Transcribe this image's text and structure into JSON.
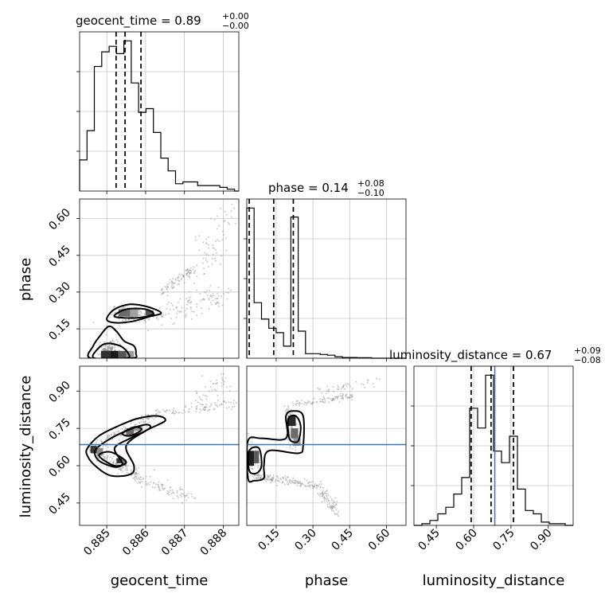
{
  "chart_data": {
    "type": "corner",
    "parameters": [
      "geocent_time",
      "phase",
      "luminosity_distance"
    ],
    "truths": {
      "luminosity_distance": 0.685
    },
    "colors": {
      "truth": "#3a78ad",
      "lines": "#000000",
      "grid": "#b0b0b0"
    },
    "summaries": [
      {
        "name": "geocent_time",
        "label": "geocent_time = 0.89",
        "plus": "+0.00",
        "minus": "−0.00"
      },
      {
        "name": "phase",
        "label": "phase = 0.14",
        "plus": "+0.08",
        "minus": "−0.10"
      },
      {
        "name": "luminosity_distance",
        "label": "luminosity_distance = 0.67",
        "plus": "+0.09",
        "minus": "−0.08"
      }
    ],
    "axes": {
      "geocent_time": {
        "range": [
          0.8843,
          0.8884
        ],
        "ticks": [
          0.885,
          0.886,
          0.887,
          0.888
        ],
        "tick_labels": [
          "0.885",
          "0.886",
          "0.887",
          "0.888"
        ]
      },
      "phase": {
        "range": [
          0.03,
          0.68
        ],
        "ticks": [
          0.15,
          0.3,
          0.45,
          0.6
        ],
        "tick_labels": [
          "0.15",
          "0.30",
          "0.45",
          "0.60"
        ]
      },
      "luminosity_distance": {
        "range": [
          0.36,
          1.0
        ],
        "ticks": [
          0.45,
          0.6,
          0.75,
          0.9
        ],
        "tick_labels": [
          "0.45",
          "0.60",
          "0.75",
          "0.90"
        ]
      }
    },
    "histograms": [
      {
        "name": "geocent_time",
        "edges": [
          0.8843,
          0.88449,
          0.88468,
          0.88487,
          0.88506,
          0.88525,
          0.88544,
          0.88563,
          0.88582,
          0.88601,
          0.8862,
          0.88639,
          0.88658,
          0.88677,
          0.88696,
          0.88715,
          0.88734,
          0.88753,
          0.88772,
          0.88791,
          0.8881,
          0.88829,
          0.8884
        ],
        "counts": [
          0.17,
          0.33,
          0.68,
          0.76,
          0.79,
          0.75,
          0.82,
          0.59,
          0.43,
          0.45,
          0.32,
          0.18,
          0.11,
          0.04,
          0.05,
          0.05,
          0.03,
          0.03,
          0.03,
          0.02,
          0.01,
          0.0
        ],
        "quantiles": [
          0.88524,
          0.88547,
          0.88588
        ]
      },
      {
        "name": "phase",
        "edges": [
          0.03,
          0.06,
          0.09,
          0.12,
          0.15,
          0.18,
          0.21,
          0.24,
          0.27,
          0.3,
          0.33,
          0.36,
          0.39,
          0.42,
          0.45,
          0.48,
          0.51,
          0.54,
          0.57,
          0.6,
          0.63,
          0.66,
          0.68
        ],
        "counts": [
          1.0,
          0.37,
          0.26,
          0.2,
          0.17,
          0.08,
          0.94,
          0.18,
          0.03,
          0.03,
          0.025,
          0.02,
          0.01,
          0.005,
          0.005,
          0.003,
          0.003,
          0.0,
          0.0,
          0.0,
          0.0,
          0.0
        ],
        "quantiles": [
          0.04,
          0.14,
          0.22
        ]
      },
      {
        "name": "luminosity_distance",
        "edges": [
          0.36,
          0.392,
          0.424,
          0.456,
          0.488,
          0.52,
          0.552,
          0.584,
          0.616,
          0.648,
          0.68,
          0.712,
          0.744,
          0.776,
          0.808,
          0.84,
          0.872,
          0.904,
          0.936,
          0.968,
          1.0
        ],
        "counts": [
          0.0,
          0.01,
          0.03,
          0.07,
          0.11,
          0.19,
          0.29,
          0.71,
          0.59,
          0.91,
          0.45,
          0.38,
          0.54,
          0.22,
          0.09,
          0.07,
          0.02,
          0.01,
          0.01,
          0.0
        ],
        "quantiles": [
          0.59,
          0.67,
          0.76
        ]
      }
    ]
  }
}
